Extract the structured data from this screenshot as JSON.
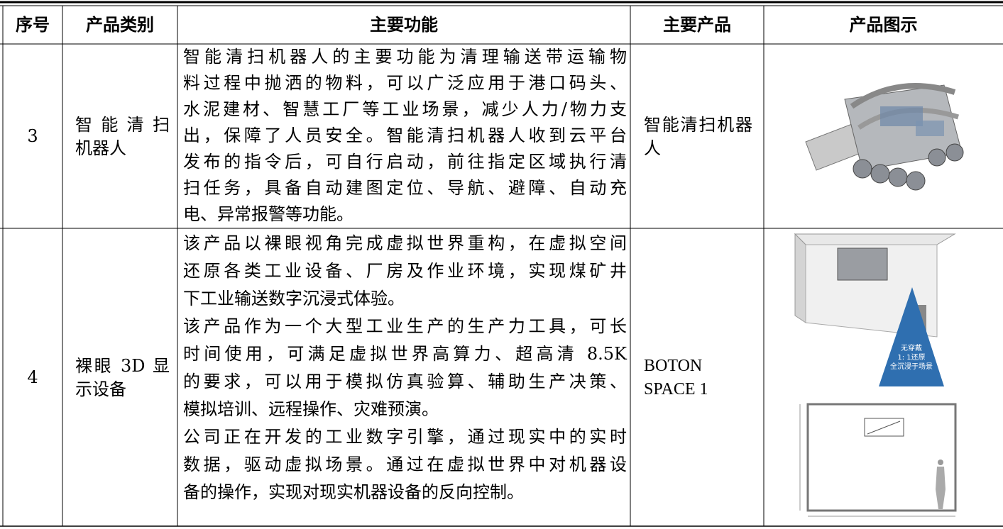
{
  "table": {
    "header": [
      "序号",
      "产品类别",
      "主要功能",
      "主要产品",
      "产品图示"
    ],
    "rows": [
      {
        "serial": "3",
        "category": [
          "智能清扫",
          "机器人"
        ],
        "function": [
          [
            "智能清扫机器人的主要功能为清理输送带运输物",
            "料过程中抛洒的物料，可以广泛应用于港口码头、",
            "水泥建材、智慧工厂等工业场景，减少人力/物力支",
            "出，保障了人员安全。智能清扫机器人收到云平台",
            "发布的指令后，可自行启动，前往指定区域执行清",
            "扫任务，具备自动建图定位、导航、避障、自动充",
            "电、异常报警等功能。"
          ]
        ],
        "product": [
          "智能清扫机器",
          "人"
        ]
      },
      {
        "serial": "4",
        "category": [
          "裸眼 3D 显",
          "示设备"
        ],
        "function": [
          [
            "该产品以裸眼视角完成虚拟世界重构，在虚拟空间",
            "还原各类工业设备、厂房及作业环境，实现煤矿井",
            "下工业输送数字沉浸式体验。"
          ],
          [
            "该产品作为一个大型工业生产的生产力工具，可长",
            "时间使用，可满足虚拟世界高算力、超高清 8.5K",
            "的要求，可以用于模拟仿真验算、辅助生产决策、",
            "模拟培训、远程操作、灾难预演。"
          ],
          [
            "公司正在开发的工业数字引擎，通过现实中的实时",
            "数据，驱动虚拟场景。通过在虚拟世界中对机器设",
            "备的操作，实现对现实机器设备的反向控制。"
          ]
        ],
        "product": [
          "BOTON",
          "SPACE 1"
        ],
        "image_text": [
          "无穿戴",
          "1: 1还原",
          "全沉浸于场景"
        ]
      }
    ]
  }
}
